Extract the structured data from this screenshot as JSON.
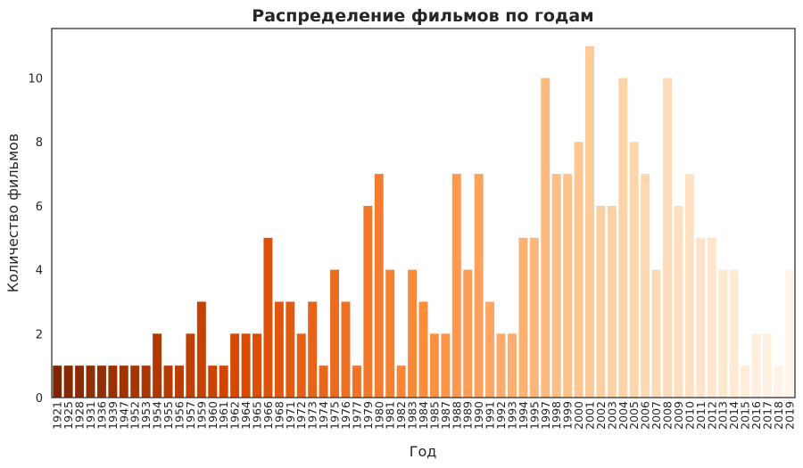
{
  "chart_data": {
    "type": "bar",
    "title": "Распределение фильмов по годам",
    "xlabel": "Год",
    "ylabel": "Количество фильмов",
    "ylim": [
      0,
      11.55
    ],
    "yticks": [
      0,
      2,
      4,
      6,
      8,
      10
    ],
    "grid": false,
    "palette": [
      "#7f2704",
      "#d94801",
      "#fd8d3c",
      "#fdd0a2",
      "#fff5eb"
    ],
    "categories": [
      "1921",
      "1925",
      "1928",
      "1931",
      "1936",
      "1939",
      "1947",
      "1952",
      "1953",
      "1954",
      "1955",
      "1956",
      "1957",
      "1959",
      "1960",
      "1961",
      "1962",
      "1964",
      "1965",
      "1966",
      "1968",
      "1971",
      "1972",
      "1973",
      "1974",
      "1975",
      "1976",
      "1977",
      "1979",
      "1980",
      "1981",
      "1982",
      "1983",
      "1984",
      "1985",
      "1987",
      "1988",
      "1989",
      "1990",
      "1991",
      "1992",
      "1993",
      "1994",
      "1995",
      "1997",
      "1998",
      "1999",
      "2000",
      "2001",
      "2002",
      "2003",
      "2004",
      "2005",
      "2006",
      "2007",
      "2008",
      "2009",
      "2010",
      "2011",
      "2012",
      "2013",
      "2014",
      "2015",
      "2016",
      "2017",
      "2018",
      "2019"
    ],
    "values": [
      1,
      1,
      1,
      1,
      1,
      1,
      1,
      1,
      1,
      2,
      1,
      1,
      2,
      3,
      1,
      1,
      2,
      2,
      2,
      5,
      3,
      3,
      2,
      3,
      1,
      4,
      3,
      1,
      6,
      7,
      4,
      1,
      4,
      3,
      2,
      2,
      7,
      4,
      7,
      3,
      2,
      2,
      5,
      5,
      10,
      7,
      7,
      8,
      11,
      6,
      6,
      10,
      8,
      7,
      4,
      10,
      6,
      7,
      5,
      5,
      4,
      4,
      1,
      2,
      2,
      1,
      4
    ]
  }
}
